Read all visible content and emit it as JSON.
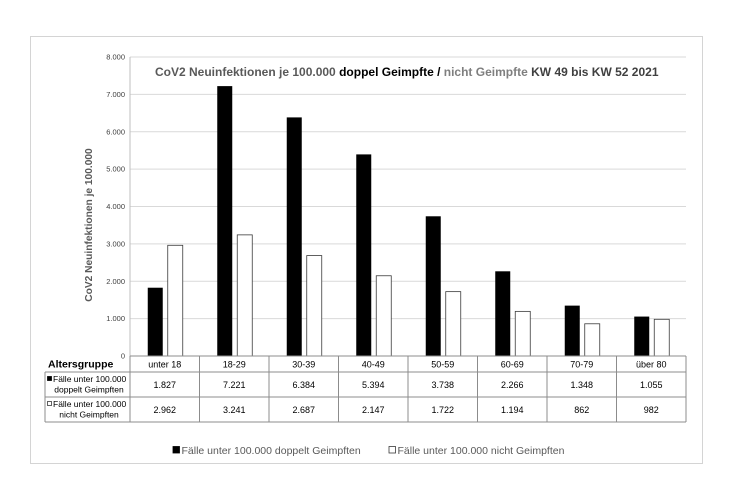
{
  "chart_data": {
    "type": "bar",
    "title_parts": [
      {
        "text": "CoV2 Neuinfektionen je 100.000 ",
        "color": "#595959"
      },
      {
        "text": "doppel Geimpfte",
        "color": "#000000"
      },
      {
        "text": " / ",
        "color": "#000000"
      },
      {
        "text": "nicht Geimpfte",
        "color": "#7f7f7f"
      },
      {
        "text": " KW 49 bis KW 52 2021",
        "color": "#404040"
      }
    ],
    "ylabel": "CoV2 Neuinfektionen je 100.000",
    "table_header": "Altersgruppe",
    "categories": [
      "unter 18",
      "18-29",
      "30-39",
      "40-49",
      "50-59",
      "60-69",
      "70-79",
      "über 80"
    ],
    "ylim": [
      0,
      8000
    ],
    "yticks": [
      0,
      1000,
      2000,
      3000,
      4000,
      5000,
      6000,
      7000,
      8000
    ],
    "grid": true,
    "legend_position": "bottom",
    "series": [
      {
        "name": "Fälle unter 100.000 doppelt Geimpften",
        "row_label_lines": [
          "Fälle unter 100.000",
          "doppelt Geimpften"
        ],
        "color": "#000000",
        "values": [
          1827,
          7221,
          6384,
          5394,
          3738,
          2266,
          1348,
          1055
        ]
      },
      {
        "name": "Fälle unter 100.000 nicht Geimpften",
        "row_label_lines": [
          "Fälle unter 100.000",
          "nicht Geimpften"
        ],
        "color": "#ffffff",
        "stroke": "#3a3a3a",
        "values": [
          2962,
          3241,
          2687,
          2147,
          1722,
          1194,
          862,
          982
        ]
      }
    ]
  }
}
